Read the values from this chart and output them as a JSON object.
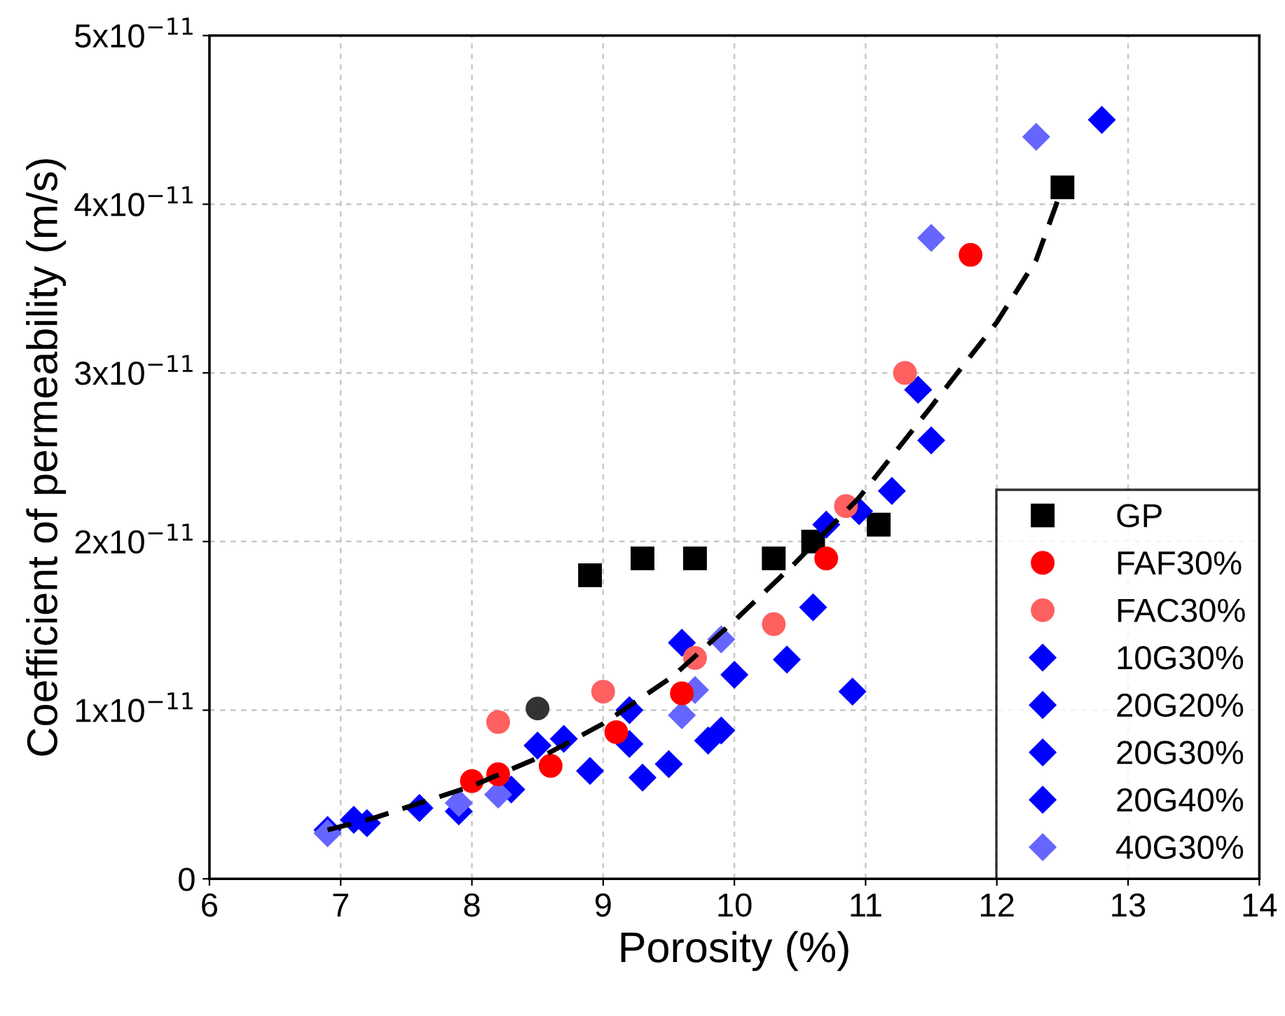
{
  "chart_data": {
    "type": "scatter",
    "xlabel": "Porosity (%)",
    "ylabel": "Coefficient of permeability (m/s)",
    "xlim": [
      6,
      14
    ],
    "xticks": [
      6,
      7,
      8,
      9,
      10,
      11,
      12,
      13,
      14
    ],
    "ylim": [
      0,
      5e-11
    ],
    "yticks": [
      0,
      {
        "value": 1e-11,
        "label": "1x10$^{−11}$"
      },
      {
        "value": 2e-11,
        "label": "2x10$^{−11}$"
      },
      {
        "value": 3e-11,
        "label": "3x10$^{−11}$"
      },
      {
        "value": 4e-11,
        "label": "4x10$^{−11}$"
      },
      {
        "value": 5e-11,
        "label": "5x10$^{−11}$"
      }
    ],
    "grid": true,
    "legend": "lower right",
    "series": [
      {
        "name": "GP",
        "color": "#000000",
        "marker": "square",
        "x": [
          8.9,
          9.3,
          9.7,
          10.3,
          10.6,
          11.1,
          12.5
        ],
        "values": [
          1.8e-11,
          1.9e-11,
          1.9e-11,
          1.9e-11,
          2e-11,
          2.1e-11,
          4.1e-11
        ]
      },
      {
        "name": "FAF30%",
        "color": "#ff0000",
        "marker": "circle",
        "x": [
          8.0,
          8.2,
          8.6,
          9.1,
          9.6,
          10.7,
          11.8
        ],
        "values": [
          5.8e-12,
          6.2e-12,
          6.7e-12,
          8.7e-12,
          1.1e-11,
          1.9e-11,
          3.7e-11
        ]
      },
      {
        "name": "FAC30%",
        "color": "#ff6060",
        "marker": "circle",
        "x": [
          8.2,
          9.0,
          9.7,
          10.3,
          10.85,
          11.3
        ],
        "values": [
          9.3e-12,
          1.11e-11,
          1.31e-11,
          1.51e-11,
          2.21e-11,
          3e-11
        ]
      },
      {
        "name": "10G30%",
        "color": "#0000ff",
        "marker": "diamond",
        "x": [
          7.1,
          7.9,
          8.7,
          9.6,
          11.2
        ],
        "values": [
          3.5e-12,
          4e-12,
          8.3e-12,
          1.4e-11,
          2.3e-11
        ]
      },
      {
        "name": "20G20%",
        "color": "#0000ff",
        "marker": "diamond",
        "x": [
          6.9,
          7.6,
          8.5,
          9.2,
          10.4,
          10.95
        ],
        "values": [
          2.9e-12,
          4.2e-12,
          7.9e-12,
          1e-11,
          1.3e-11,
          2.18e-11
        ]
      },
      {
        "name": "20G30%",
        "color": "#0000ff",
        "marker": "diamond",
        "x": [
          8.3,
          8.9,
          9.2,
          10.7,
          10.9,
          11.4
        ],
        "values": [
          5.3e-12,
          6.4e-12,
          8e-12,
          2.1e-11,
          1.11e-11,
          2.9e-11
        ]
      },
      {
        "name": "20G40%",
        "color": "#0000ff",
        "marker": "diamond",
        "x": [
          7.2,
          9.3,
          9.5,
          9.8,
          9.9,
          10.0,
          10.6,
          11.5,
          12.8
        ],
        "values": [
          3.3e-12,
          6e-12,
          6.8e-12,
          8.2e-12,
          8.8e-12,
          1.21e-11,
          1.61e-11,
          2.6e-11,
          4.5e-11
        ]
      },
      {
        "name": "40G30%",
        "color": "#6666ff",
        "marker": "diamond",
        "x": [
          6.9,
          7.9,
          8.2,
          9.6,
          9.7,
          9.9,
          11.5,
          12.3
        ],
        "values": [
          2.7e-12,
          4.5e-12,
          5e-12,
          9.7e-12,
          1.12e-11,
          1.42e-11,
          3.8e-11,
          4.4e-11
        ]
      },
      {
        "color": "#333333",
        "marker": "circle",
        "x": [
          8.5
        ],
        "values": [
          1.01e-11
        ]
      },
      {
        "type": "line",
        "color": "#000000",
        "line_style": "dashed",
        "marker": "none",
        "x": [
          6.9,
          7.25,
          8.0,
          8.57,
          9.0,
          9.53,
          10.0,
          10.46,
          10.95,
          11.5,
          12.0,
          12.3,
          12.5
        ],
        "values": [
          2.9e-12,
          3.6e-12,
          5.5e-12,
          7.4e-12,
          9.2e-12,
          1.2e-11,
          1.53e-11,
          1.87e-11,
          2.26e-11,
          2.8e-11,
          3.3e-11,
          3.67e-11,
          4.1e-11
        ]
      }
    ]
  }
}
